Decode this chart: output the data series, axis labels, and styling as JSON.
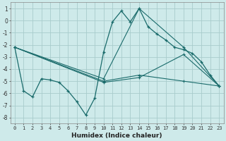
{
  "xlabel": "Humidex (Indice chaleur)",
  "background_color": "#ceeaea",
  "grid_color": "#a8cccc",
  "line_color": "#1a6b6b",
  "xlim": [
    -0.5,
    23.5
  ],
  "ylim": [
    -8.5,
    1.5
  ],
  "yticks": [
    1,
    0,
    -1,
    -2,
    -3,
    -4,
    -5,
    -6,
    -7,
    -8
  ],
  "xticks": [
    0,
    1,
    2,
    3,
    4,
    5,
    6,
    7,
    8,
    9,
    10,
    11,
    12,
    13,
    14,
    15,
    16,
    17,
    18,
    19,
    20,
    21,
    22,
    23
  ],
  "main_series": {
    "x": [
      0,
      1,
      2,
      3,
      4,
      5,
      6,
      7,
      8,
      9,
      10,
      11,
      12,
      13,
      14,
      15,
      16,
      17,
      18,
      19,
      20,
      21,
      22,
      23
    ],
    "y": [
      -2.2,
      -5.8,
      -6.3,
      -4.8,
      -4.9,
      -5.1,
      -5.8,
      -6.7,
      -7.8,
      -6.4,
      -2.6,
      -0.1,
      0.8,
      -0.1,
      1.0,
      -0.5,
      -1.1,
      -1.6,
      -2.2,
      -2.4,
      -2.7,
      -3.4,
      -4.5,
      -5.4
    ]
  },
  "extra_series": [
    {
      "x": [
        0,
        10,
        14,
        19,
        23
      ],
      "y": [
        -2.2,
        -4.8,
        1.0,
        -2.2,
        -5.4
      ]
    },
    {
      "x": [
        0,
        10,
        14,
        19,
        23
      ],
      "y": [
        -2.2,
        -5.0,
        -4.5,
        -5.0,
        -5.4
      ]
    },
    {
      "x": [
        0,
        10,
        14,
        19,
        23
      ],
      "y": [
        -2.2,
        -5.1,
        -4.7,
        -2.8,
        -5.4
      ]
    }
  ]
}
